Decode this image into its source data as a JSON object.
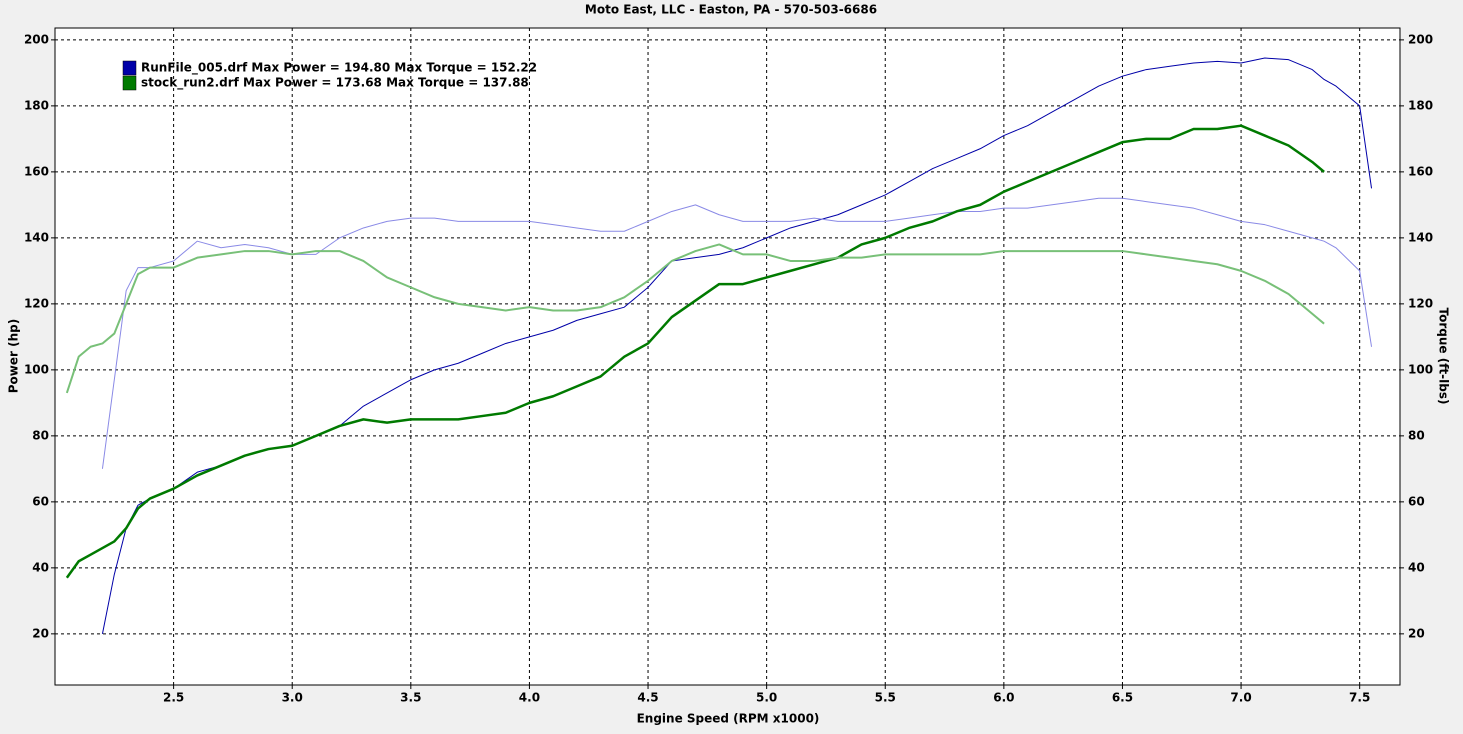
{
  "chart_data": {
    "type": "line",
    "title": "Moto East, LLC - Easton, PA - 570-503-6686",
    "x_label": "Engine Speed (RPM x1000)",
    "y_label": "Power (hp)",
    "y2_label": "Torque (ft-lbs)",
    "x": [
      2.05,
      2.1,
      2.15,
      2.2,
      2.25,
      2.3,
      2.35,
      2.4,
      2.5,
      2.6,
      2.7,
      2.8,
      2.9,
      3.0,
      3.1,
      3.2,
      3.3,
      3.4,
      3.5,
      3.6,
      3.7,
      3.8,
      3.9,
      4.0,
      4.1,
      4.2,
      4.3,
      4.4,
      4.5,
      4.6,
      4.7,
      4.8,
      4.9,
      5.0,
      5.1,
      5.2,
      5.3,
      5.4,
      5.5,
      5.6,
      5.7,
      5.8,
      5.9,
      6.0,
      6.1,
      6.2,
      6.3,
      6.4,
      6.5,
      6.6,
      6.7,
      6.8,
      6.9,
      7.0,
      7.1,
      7.2,
      7.3,
      7.35,
      7.4,
      7.5,
      7.55
    ],
    "series": [
      {
        "name": "RunFile_005.drf Max Power = 194.80 Max Torque = 152.22",
        "color": "#0000a8",
        "values": [
          null,
          null,
          null,
          20,
          38,
          52,
          59,
          61,
          64,
          69,
          71,
          74,
          76,
          77,
          80,
          83,
          89,
          93,
          97,
          100,
          102,
          105,
          108,
          110,
          112,
          115,
          117,
          119,
          125,
          133,
          134,
          135,
          137,
          140,
          143,
          145,
          147,
          150,
          153,
          157,
          161,
          164,
          167,
          171,
          174,
          178,
          182,
          186,
          189,
          191,
          192,
          193,
          193.5,
          193,
          194.5,
          194,
          191,
          188,
          186,
          180,
          155
        ]
      },
      {
        "color": "#8a8ae6",
        "axis": "y2",
        "values": [
          null,
          null,
          null,
          70,
          97,
          124,
          131,
          131,
          133,
          139,
          137,
          138,
          137,
          135,
          135,
          140,
          143,
          145,
          146,
          146,
          145,
          145,
          145,
          145,
          144,
          143,
          142,
          142,
          145,
          148,
          150,
          147,
          145,
          145,
          145,
          146,
          145,
          145,
          145,
          146,
          147,
          148,
          148,
          149,
          149,
          150,
          151,
          152,
          152,
          151,
          150,
          149,
          147,
          145,
          144,
          142,
          140,
          139,
          137,
          130,
          107
        ]
      },
      {
        "name": "stock_run2.drf Max Power = 173.68 Max Torque = 137.88",
        "color": "#007a00",
        "values": [
          37,
          42,
          44,
          46,
          48,
          52,
          58,
          61,
          64,
          68,
          71,
          74,
          76,
          77,
          80,
          83,
          85,
          84,
          85,
          85,
          85,
          86,
          87,
          90,
          92,
          95,
          98,
          104,
          108,
          116,
          121,
          126,
          126,
          128,
          130,
          132,
          134,
          138,
          140,
          143,
          145,
          148,
          150,
          154,
          157,
          160,
          163,
          166,
          169,
          170,
          170,
          173,
          173,
          174,
          171,
          168,
          163,
          160,
          null,
          null,
          null
        ]
      },
      {
        "color": "#78c078",
        "axis": "y2",
        "values": [
          93,
          104,
          107,
          108,
          111,
          120,
          129,
          131,
          131,
          134,
          135,
          136,
          136,
          135,
          136,
          136,
          133,
          128,
          125,
          122,
          120,
          119,
          118,
          119,
          118,
          118,
          119,
          122,
          127,
          133,
          136,
          138,
          135,
          135,
          133,
          133,
          134,
          134,
          135,
          135,
          135,
          135,
          135,
          136,
          136,
          136,
          136,
          136,
          136,
          135,
          134,
          133,
          132,
          130,
          127,
          123,
          117,
          114,
          null,
          null,
          null
        ]
      }
    ],
    "xlim": [
      2.0,
      7.67
    ],
    "ylim": [
      4.5,
      203.6
    ],
    "y2lim": [
      4.5,
      203.6
    ],
    "xticks": [
      2.5,
      {
        "value": 3,
        "label": "3.0"
      },
      3.5,
      {
        "value": 4,
        "label": "4.0"
      },
      4.5,
      {
        "value": 5,
        "label": "5.0"
      },
      5.5,
      {
        "value": 6,
        "label": "6.0"
      },
      6.5,
      {
        "value": 7,
        "label": "7.0"
      },
      7.5
    ],
    "yticks": [
      20,
      40,
      60,
      80,
      100,
      120,
      140,
      160,
      180,
      200
    ],
    "y2ticks": [
      20,
      40,
      60,
      80,
      100,
      120,
      140,
      160,
      180,
      200
    ],
    "grid": true,
    "legend": "upper left"
  }
}
